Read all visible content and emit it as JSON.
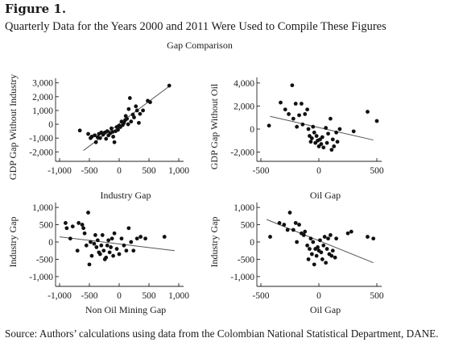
{
  "figure": {
    "label": "Figure 1.",
    "title": "Quarterly Data for the Years 2000 and 2011 Were Used to Compile These Figures",
    "subtitle": "Gap Comparison",
    "source": "Source: Authors’ calculations using data from the Colombian National Statistical Department, DANE."
  },
  "chart_data": [
    {
      "type": "scatter",
      "title": "",
      "xlabel": "",
      "ylabel": "GDP Gap Without Industry",
      "xlim": [
        -1000,
        1000
      ],
      "ylim": [
        -2100,
        3100
      ],
      "xticks": [
        -1000,
        -500,
        0,
        500,
        1000
      ],
      "xtick_labels": [
        "-1,000",
        "-500",
        "0",
        "500",
        "1,000"
      ],
      "yticks": [
        -2000,
        -1000,
        0,
        1000,
        2000,
        3000
      ],
      "ytick_labels": [
        "-2,000",
        "-1,000",
        "0",
        "1,000",
        "2,000",
        "3,000"
      ],
      "fit_line": [
        [
          -600,
          -1900
        ],
        [
          870,
          2850
        ]
      ],
      "points": [
        [
          -660,
          -450
        ],
        [
          -520,
          -700
        ],
        [
          -480,
          -1000
        ],
        [
          -460,
          -900
        ],
        [
          -410,
          -800
        ],
        [
          -390,
          -1300
        ],
        [
          -360,
          -950
        ],
        [
          -340,
          -700
        ],
        [
          -320,
          -1000
        ],
        [
          -300,
          -600
        ],
        [
          -270,
          -750
        ],
        [
          -240,
          -600
        ],
        [
          -220,
          -1050
        ],
        [
          -200,
          -500
        ],
        [
          -180,
          -800
        ],
        [
          -150,
          -650
        ],
        [
          -130,
          -300
        ],
        [
          -110,
          -550
        ],
        [
          -100,
          -900
        ],
        [
          -80,
          -1300
        ],
        [
          -60,
          -500
        ],
        [
          -40,
          -200
        ],
        [
          -20,
          -400
        ],
        [
          0,
          -100
        ],
        [
          20,
          -200
        ],
        [
          40,
          200
        ],
        [
          60,
          -50
        ],
        [
          80,
          100
        ],
        [
          100,
          300
        ],
        [
          110,
          600
        ],
        [
          130,
          400
        ],
        [
          150,
          0
        ],
        [
          160,
          1100
        ],
        [
          180,
          1900
        ],
        [
          200,
          200
        ],
        [
          230,
          700
        ],
        [
          250,
          500
        ],
        [
          280,
          1300
        ],
        [
          300,
          1000
        ],
        [
          330,
          100
        ],
        [
          350,
          750
        ],
        [
          400,
          1000
        ],
        [
          480,
          1700
        ],
        [
          520,
          1600
        ],
        [
          840,
          2800
        ]
      ],
      "grid": false
    },
    {
      "type": "scatter",
      "title": "",
      "xlabel": "",
      "ylabel": "GDP Gap Without Oil",
      "xlim": [
        -500,
        500
      ],
      "ylim": [
        -2100,
        4200
      ],
      "xticks": [
        -500,
        0,
        500
      ],
      "xtick_labels": [
        "-500",
        "0",
        "500"
      ],
      "yticks": [
        -2000,
        0,
        2000,
        4000
      ],
      "ytick_labels": [
        "-2,000",
        "0",
        "2,000",
        "4,000"
      ],
      "fit_line": [
        [
          -420,
          1100
        ],
        [
          470,
          -950
        ]
      ],
      "points": [
        [
          -430,
          300
        ],
        [
          -330,
          2300
        ],
        [
          -290,
          1700
        ],
        [
          -260,
          1300
        ],
        [
          -230,
          3800
        ],
        [
          -220,
          900
        ],
        [
          -200,
          2200
        ],
        [
          -190,
          200
        ],
        [
          -170,
          1200
        ],
        [
          -150,
          2200
        ],
        [
          -140,
          400
        ],
        [
          -120,
          1300
        ],
        [
          -100,
          1700
        ],
        [
          -90,
          0
        ],
        [
          -80,
          -600
        ],
        [
          -70,
          -1100
        ],
        [
          -60,
          -800
        ],
        [
          -50,
          200
        ],
        [
          -40,
          -300
        ],
        [
          -30,
          -1200
        ],
        [
          -20,
          -600
        ],
        [
          -10,
          -1000
        ],
        [
          0,
          -1500
        ],
        [
          10,
          -900
        ],
        [
          20,
          -1300
        ],
        [
          30,
          -700
        ],
        [
          40,
          -1600
        ],
        [
          60,
          100
        ],
        [
          70,
          -1200
        ],
        [
          80,
          -400
        ],
        [
          100,
          900
        ],
        [
          110,
          -1800
        ],
        [
          120,
          -900
        ],
        [
          130,
          -1500
        ],
        [
          150,
          -300
        ],
        [
          160,
          -1100
        ],
        [
          180,
          0
        ],
        [
          300,
          -200
        ],
        [
          420,
          1500
        ],
        [
          500,
          700
        ]
      ],
      "grid": false
    },
    {
      "type": "scatter",
      "title": "Industry Gap",
      "xlabel": "Non Oil Mining Gap",
      "ylabel": "Industry Gap",
      "xlim": [
        -1000,
        1000
      ],
      "ylim": [
        -1050,
        1050
      ],
      "xticks": [
        -1000,
        -500,
        0,
        500,
        1000
      ],
      "xtick_labels": [
        "-1,000",
        "-500",
        "0",
        "500",
        "1,000"
      ],
      "yticks": [
        -1000,
        -500,
        0,
        500,
        1000
      ],
      "ytick_labels": [
        "-1,000",
        "-500",
        "0",
        "500",
        "1,000"
      ],
      "fit_line": [
        [
          -1000,
          150
        ],
        [
          930,
          -250
        ]
      ],
      "points": [
        [
          -900,
          550
        ],
        [
          -880,
          400
        ],
        [
          -820,
          100
        ],
        [
          -780,
          450
        ],
        [
          -700,
          -250
        ],
        [
          -680,
          550
        ],
        [
          -620,
          500
        ],
        [
          -600,
          400
        ],
        [
          -580,
          250
        ],
        [
          -550,
          -100
        ],
        [
          -520,
          850
        ],
        [
          -500,
          -650
        ],
        [
          -480,
          0
        ],
        [
          -460,
          -400
        ],
        [
          -420,
          -50
        ],
        [
          -400,
          200
        ],
        [
          -380,
          -150
        ],
        [
          -360,
          50
        ],
        [
          -340,
          -300
        ],
        [
          -320,
          -350
        ],
        [
          -300,
          -100
        ],
        [
          -280,
          200
        ],
        [
          -260,
          -250
        ],
        [
          -240,
          -500
        ],
        [
          -220,
          -450
        ],
        [
          -200,
          -100
        ],
        [
          -180,
          50
        ],
        [
          -160,
          -300
        ],
        [
          -140,
          -150
        ],
        [
          -120,
          100
        ],
        [
          -100,
          -400
        ],
        [
          -80,
          250
        ],
        [
          -40,
          -200
        ],
        [
          0,
          -350
        ],
        [
          40,
          100
        ],
        [
          80,
          -100
        ],
        [
          120,
          -250
        ],
        [
          160,
          400
        ],
        [
          200,
          0
        ],
        [
          240,
          -250
        ],
        [
          300,
          100
        ],
        [
          360,
          150
        ],
        [
          440,
          100
        ],
        [
          760,
          150
        ]
      ],
      "grid": false
    },
    {
      "type": "scatter",
      "title": "Oil Gap",
      "xlabel": "Oil Gap",
      "ylabel": "Industry Gap",
      "xlim": [
        -500,
        500
      ],
      "ylim": [
        -1050,
        1050
      ],
      "xticks": [
        -500,
        0,
        500
      ],
      "xtick_labels": [
        "-500",
        "0",
        "500"
      ],
      "yticks": [
        -1000,
        -500,
        0,
        500,
        1000
      ],
      "ytick_labels": [
        "-1,000",
        "-500",
        "0",
        "500",
        "1,000"
      ],
      "fit_line": [
        [
          -450,
          650
        ],
        [
          470,
          -600
        ]
      ],
      "points": [
        [
          -420,
          150
        ],
        [
          -340,
          550
        ],
        [
          -300,
          500
        ],
        [
          -270,
          350
        ],
        [
          -250,
          850
        ],
        [
          -220,
          350
        ],
        [
          -200,
          550
        ],
        [
          -190,
          0
        ],
        [
          -170,
          500
        ],
        [
          -150,
          250
        ],
        [
          -130,
          200
        ],
        [
          -120,
          300
        ],
        [
          -100,
          -100
        ],
        [
          -90,
          -500
        ],
        [
          -80,
          -200
        ],
        [
          -70,
          100
        ],
        [
          -60,
          -350
        ],
        [
          -50,
          0
        ],
        [
          -40,
          -650
        ],
        [
          -30,
          -200
        ],
        [
          -20,
          -400
        ],
        [
          -10,
          -150
        ],
        [
          0,
          -250
        ],
        [
          10,
          50
        ],
        [
          20,
          -300
        ],
        [
          30,
          -500
        ],
        [
          40,
          -100
        ],
        [
          50,
          150
        ],
        [
          60,
          -600
        ],
        [
          70,
          -200
        ],
        [
          80,
          100
        ],
        [
          90,
          -350
        ],
        [
          100,
          200
        ],
        [
          110,
          -400
        ],
        [
          120,
          -250
        ],
        [
          140,
          -450
        ],
        [
          150,
          100
        ],
        [
          250,
          250
        ],
        [
          280,
          300
        ],
        [
          420,
          150
        ],
        [
          470,
          100
        ]
      ],
      "grid": false
    }
  ]
}
